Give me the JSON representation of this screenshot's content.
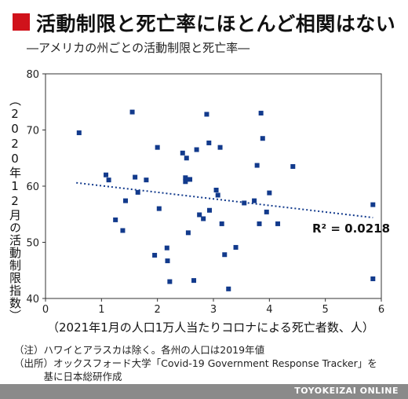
{
  "title": "活動制限と死亡率にほとんど相関はない",
  "subtitle": "―アメリカの州ごとの活動制限と死亡率―",
  "colors": {
    "accent": "#d0121b",
    "points": "#123a8c",
    "trend": "#123a8c",
    "footer": "#8a8a8a"
  },
  "notes": [
    "（注）ハワイとアラスカは除く。各州の人口は2019年値",
    "（出所）オックスフォード大学「Covid-19 Government Response Tracker」を",
    "　　　基に日本総研作成"
  ],
  "footer": "TOYOKEIZAI ONLINE",
  "chart_data": {
    "type": "scatter",
    "xlabel": "（2021年1月の人口1万人当たりコロナによる死亡者数、人）",
    "ylabel": "（2020年12月の活動制限指数）",
    "xlim": [
      0,
      6
    ],
    "ylim": [
      40,
      80
    ],
    "xticks": [
      "0",
      "1",
      "2",
      "3",
      "4",
      "5",
      "6"
    ],
    "yticks": [
      "40",
      "50",
      "60",
      "70",
      "80"
    ],
    "grid": false,
    "points": [
      [
        0.6,
        69.5
      ],
      [
        1.08,
        62
      ],
      [
        1.13,
        61.1
      ],
      [
        1.25,
        54
      ],
      [
        1.38,
        52.1
      ],
      [
        1.43,
        57.4
      ],
      [
        1.55,
        73.2
      ],
      [
        1.6,
        61.6
      ],
      [
        1.65,
        58.9
      ],
      [
        1.8,
        61.1
      ],
      [
        1.95,
        47.7
      ],
      [
        2.0,
        66.9
      ],
      [
        2.03,
        56
      ],
      [
        2.17,
        49
      ],
      [
        2.18,
        46.7
      ],
      [
        2.22,
        43
      ],
      [
        2.45,
        65.9
      ],
      [
        2.5,
        61.5
      ],
      [
        2.5,
        60.8
      ],
      [
        2.52,
        65
      ],
      [
        2.55,
        51.7
      ],
      [
        2.58,
        61.2
      ],
      [
        2.65,
        43.2
      ],
      [
        2.7,
        66.5
      ],
      [
        2.75,
        54.9
      ],
      [
        2.82,
        54.2
      ],
      [
        2.88,
        72.8
      ],
      [
        2.92,
        67.7
      ],
      [
        2.93,
        55.7
      ],
      [
        3.05,
        59.3
      ],
      [
        3.08,
        58.4
      ],
      [
        3.12,
        66.9
      ],
      [
        3.15,
        53.3
      ],
      [
        3.2,
        47.8
      ],
      [
        3.27,
        41.7
      ],
      [
        3.4,
        49.1
      ],
      [
        3.55,
        57
      ],
      [
        3.73,
        57.4
      ],
      [
        3.78,
        63.7
      ],
      [
        3.82,
        53.3
      ],
      [
        3.85,
        73
      ],
      [
        3.88,
        68.5
      ],
      [
        3.95,
        55.4
      ],
      [
        4.0,
        58.8
      ],
      [
        4.15,
        53.3
      ],
      [
        4.42,
        63.5
      ],
      [
        5.85,
        56.7
      ],
      [
        5.85,
        43.5
      ]
    ],
    "trendline": {
      "x": [
        0.55,
        5.85
      ],
      "y": [
        60.6,
        54.4
      ],
      "style": "dotted"
    },
    "annotations": [
      {
        "text": "R² = 0.0218"
      }
    ]
  }
}
